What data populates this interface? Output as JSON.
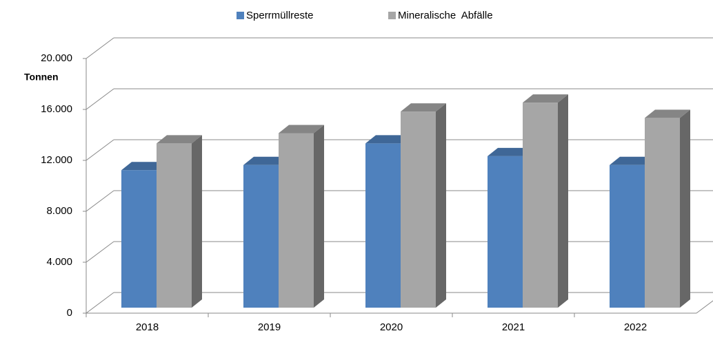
{
  "chart_data": {
    "type": "bar3d",
    "y_label": "Tonnen",
    "categories": [
      "2018",
      "2019",
      "2020",
      "2021",
      "2022"
    ],
    "series": [
      {
        "name": "Sperrmüllreste",
        "color": "#4f81bd",
        "values": [
          10800,
          11200,
          12900,
          11900,
          11200
        ]
      },
      {
        "name": "Mineralische  Abfälle",
        "color": "#a6a6a6",
        "values": [
          12900,
          13700,
          15400,
          16100,
          14900
        ]
      }
    ],
    "ylim": [
      0,
      20000
    ],
    "yticks": [
      0,
      {
        "value": 4000,
        "label": "4.000"
      },
      {
        "value": 8000,
        "label": "8.000"
      },
      {
        "value": 12000,
        "label": "12.000"
      },
      {
        "value": 16000,
        "label": "16.000"
      },
      {
        "value": 20000,
        "label": "20.000"
      }
    ],
    "grid": true,
    "legend": "top"
  }
}
